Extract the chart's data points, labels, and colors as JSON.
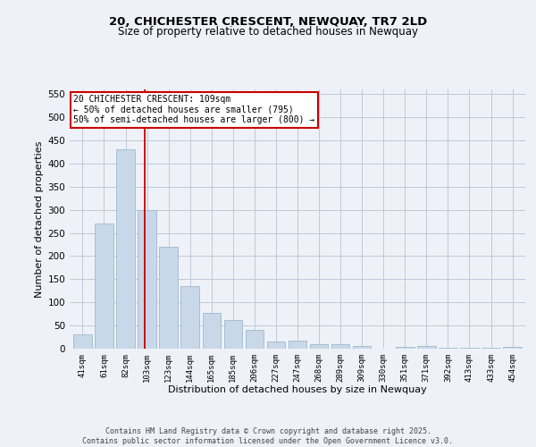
{
  "title_line1": "20, CHICHESTER CRESCENT, NEWQUAY, TR7 2LD",
  "title_line2": "Size of property relative to detached houses in Newquay",
  "xlabel": "Distribution of detached houses by size in Newquay",
  "ylabel": "Number of detached properties",
  "bar_labels": [
    "41sqm",
    "61sqm",
    "82sqm",
    "103sqm",
    "123sqm",
    "144sqm",
    "165sqm",
    "185sqm",
    "206sqm",
    "227sqm",
    "247sqm",
    "268sqm",
    "289sqm",
    "309sqm",
    "330sqm",
    "351sqm",
    "371sqm",
    "392sqm",
    "413sqm",
    "433sqm",
    "454sqm"
  ],
  "bar_values": [
    30,
    270,
    430,
    300,
    220,
    135,
    78,
    62,
    40,
    15,
    17,
    10,
    10,
    5,
    0,
    4,
    5,
    2,
    1,
    1,
    4
  ],
  "bar_color": "#c8d8e8",
  "bar_edgecolor": "#a0b8cc",
  "background_color": "#eef2f8",
  "grid_color": "#c0c8d8",
  "vline_x": 2.88,
  "vline_color": "#cc0000",
  "annotation_text": "20 CHICHESTER CRESCENT: 109sqm\n← 50% of detached houses are smaller (795)\n50% of semi-detached houses are larger (800) →",
  "annotation_box_color": "#ffffff",
  "annotation_border_color": "#cc0000",
  "ylim": [
    0,
    560
  ],
  "yticks": [
    0,
    50,
    100,
    150,
    200,
    250,
    300,
    350,
    400,
    450,
    500,
    550
  ],
  "footer_line1": "Contains HM Land Registry data © Crown copyright and database right 2025.",
  "footer_line2": "Contains public sector information licensed under the Open Government Licence v3.0."
}
